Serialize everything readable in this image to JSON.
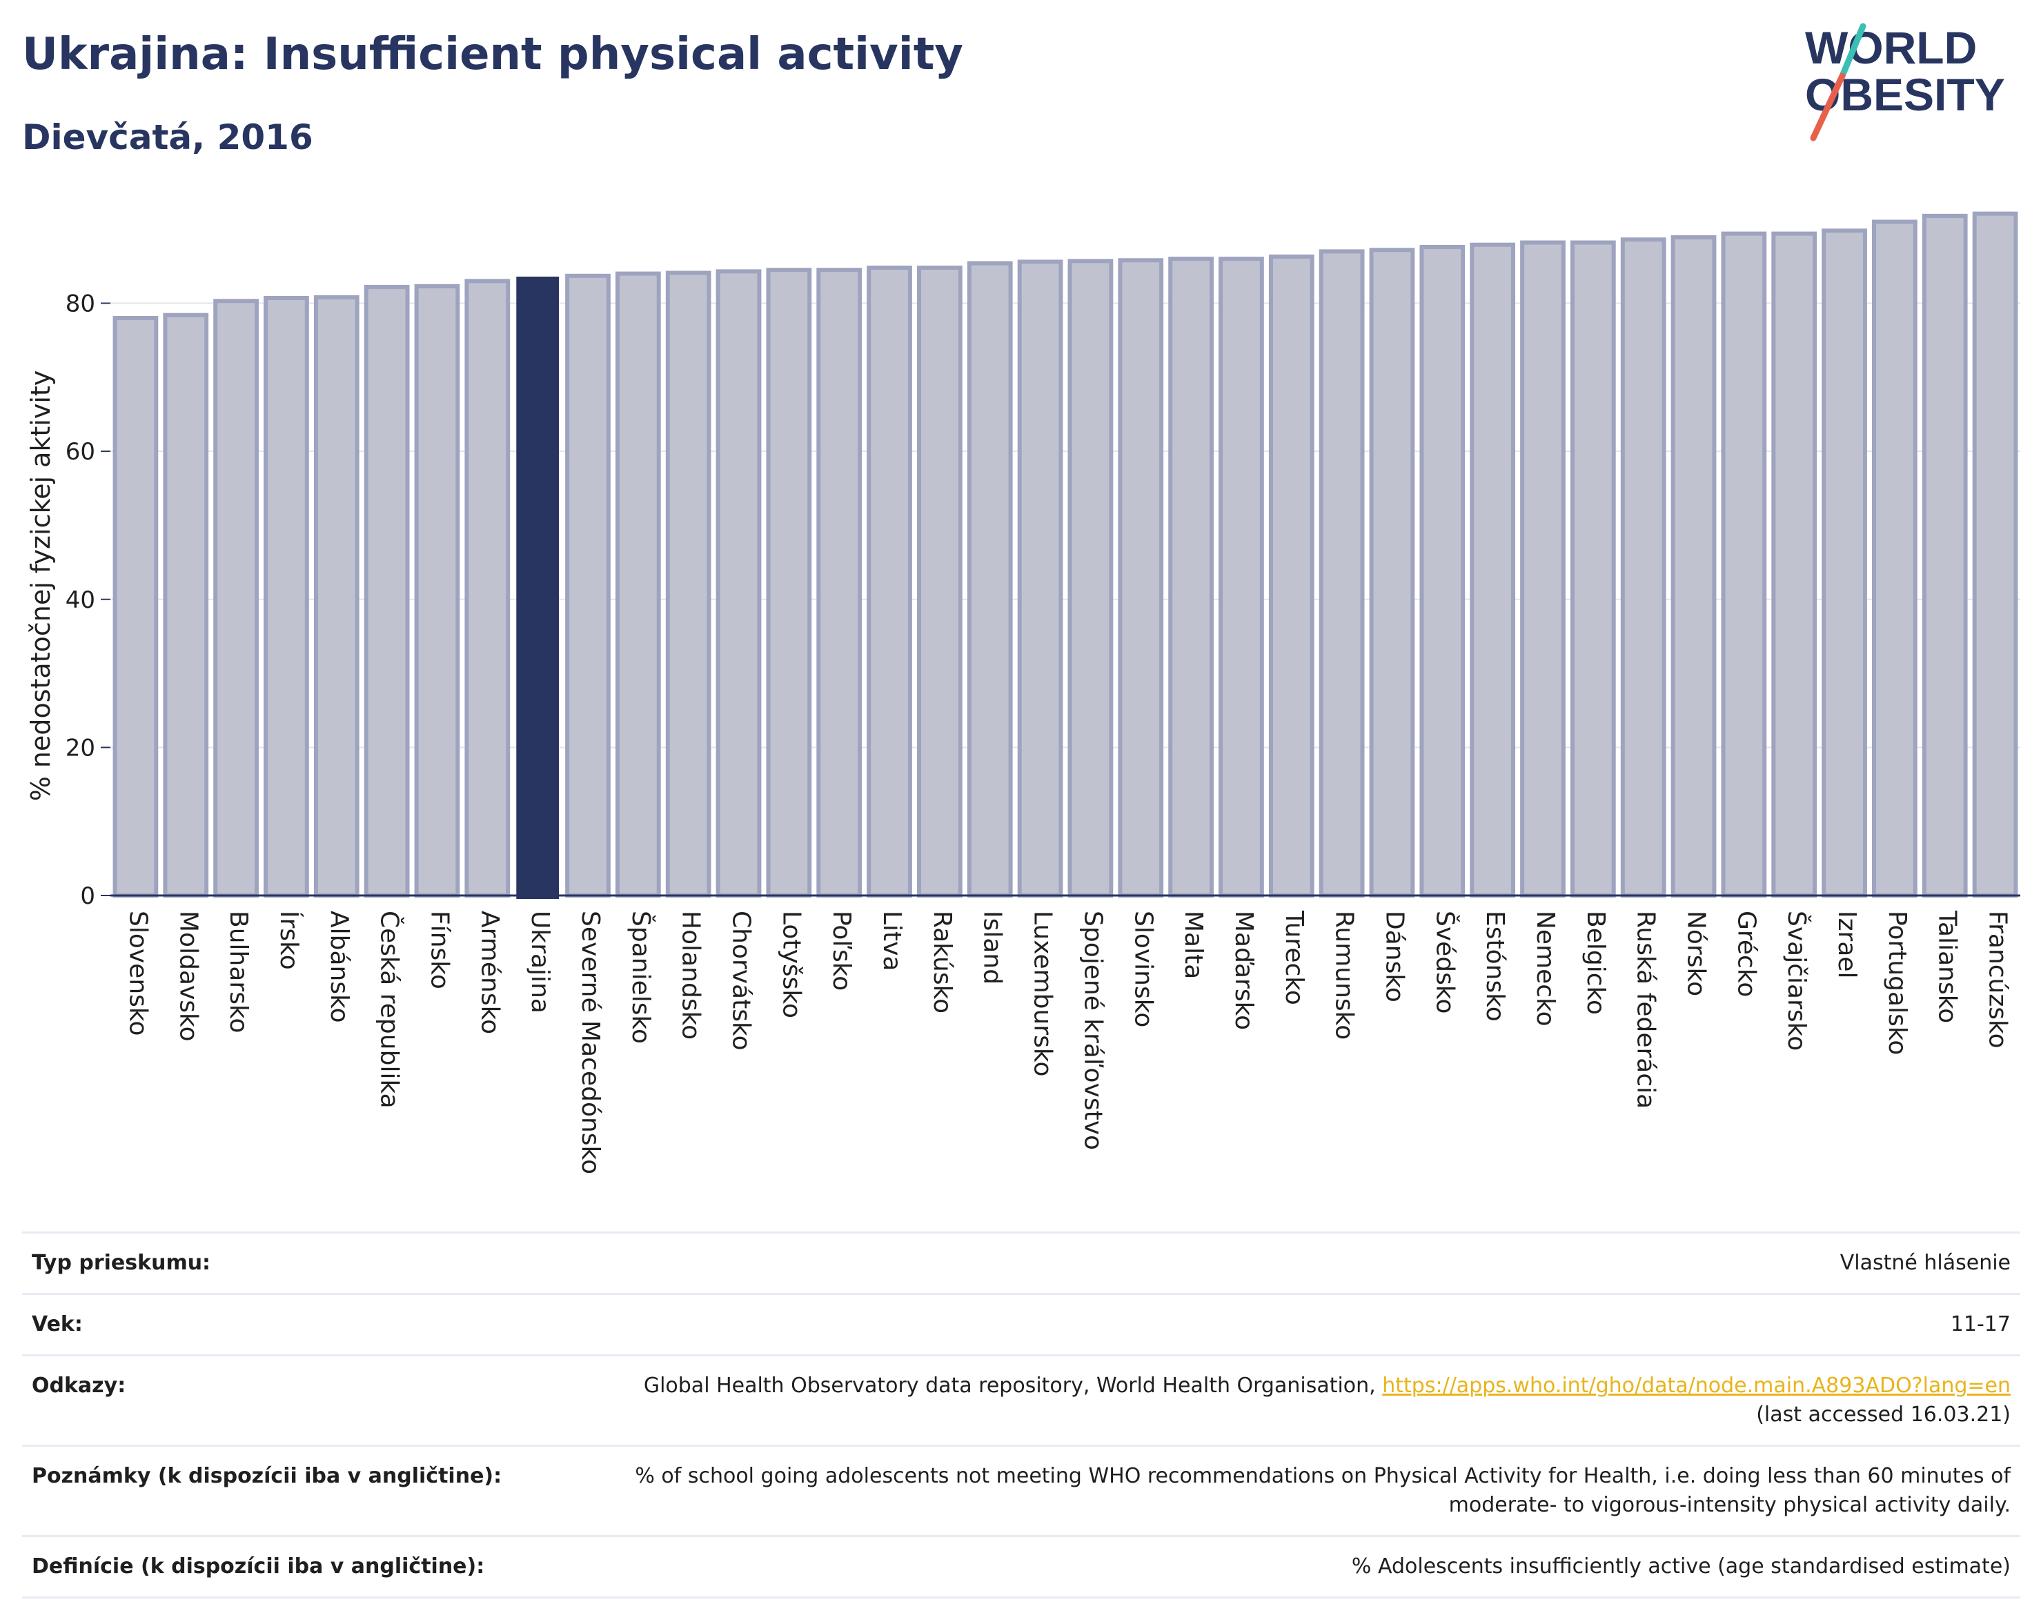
{
  "header": {
    "title": "Ukrajina: Insufficient physical activity",
    "subtitle": "Dievčatá, 2016"
  },
  "logo": {
    "line1": "WORLD",
    "line2": "OBESITY",
    "brand_color": "#283560",
    "slash_color_top": "#3bbfb5",
    "slash_color_bottom": "#e8604c"
  },
  "colors": {
    "bar": "#c0c3cf",
    "bar_border": "#9ea3bf",
    "highlight": "#283560",
    "axis": "#283560",
    "grid": "#e3e5ec"
  },
  "chart_data": {
    "type": "bar",
    "ylabel": "% nedostatočnej fyzickej aktivity",
    "xlabel": "",
    "ylim": [
      0,
      93
    ],
    "yticks": [
      0,
      20,
      40,
      60,
      80
    ],
    "grid": true,
    "highlight": "Ukrajina",
    "categories": [
      "Slovensko",
      "Moldavsko",
      "Bulharsko",
      "Írsko",
      "Albánsko",
      "Česká republika",
      "Fínsko",
      "Arménsko",
      "Ukrajina",
      "Severné Macedónsko",
      "Španielsko",
      "Holandsko",
      "Chorvátsko",
      "Lotyšsko",
      "Poľsko",
      "Litva",
      "Rakúsko",
      "Island",
      "Luxembursko",
      "Spojené kráľovstvo",
      "Slovinsko",
      "Malta",
      "Maďarsko",
      "Turecko",
      "Rumunsko",
      "Dánsko",
      "Švédsko",
      "Estónsko",
      "Nemecko",
      "Belgicko",
      "Ruská federácia",
      "Nórsko",
      "Grécko",
      "Švajčiarsko",
      "Izrael",
      "Portugalsko",
      "Taliansko",
      "Francúzsko"
    ],
    "values": [
      78.0,
      78.4,
      80.3,
      80.7,
      80.8,
      82.2,
      82.3,
      83.0,
      83.5,
      83.7,
      84.0,
      84.1,
      84.3,
      84.5,
      84.5,
      84.8,
      84.8,
      85.4,
      85.6,
      85.7,
      85.8,
      86.0,
      86.0,
      86.3,
      87.0,
      87.2,
      87.6,
      87.9,
      88.2,
      88.2,
      88.6,
      88.9,
      89.4,
      89.4,
      89.8,
      91.0,
      91.8,
      92.1
    ]
  },
  "info": {
    "rows": [
      {
        "label": "Typ prieskumu:",
        "value": "Vlastné hlásenie"
      },
      {
        "label": "Vek:",
        "value": "11-17"
      },
      {
        "label": "Odkazy:",
        "value": "Global Health Observatory data repository, World Health Organisation,",
        "link": "https://apps.who.int/gho/data/node.main.A893ADO?lang=en",
        "note": "(last accessed 16.03.21)"
      },
      {
        "label": "Poznámky (k dispozícii iba v angličtine):",
        "value": "% of school going adolescents not meeting WHO recommendations on Physical Activity for Health, i.e. doing less than 60 minutes of moderate- to vigorous-intensity physical activity daily."
      },
      {
        "label": "Definície (k dispozícii iba v angličtine):",
        "value": "% Adolescents insufficiently active (age standardised estimate)"
      }
    ]
  }
}
